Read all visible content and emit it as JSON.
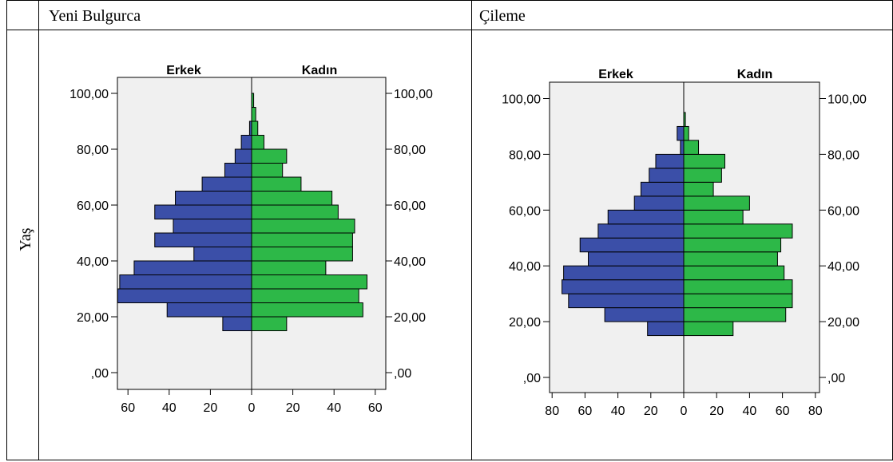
{
  "table": {
    "header_left": "Yeni Bulgurca",
    "header_right": "Çileme",
    "row_label": "Yaş"
  },
  "colors": {
    "male": "#3b4fa8",
    "female": "#2db848",
    "plot_bg": "#f0f0f0"
  },
  "chart_data": [
    {
      "type": "bar",
      "title": "",
      "left_label": "Erkek",
      "right_label": "Kadın",
      "ylabel": "Yaş",
      "ylim": [
        0,
        108
      ],
      "xlim": [
        -70,
        70
      ],
      "yticks": [
        0,
        20,
        40,
        60,
        80,
        100
      ],
      "ytick_labels": [
        ",00",
        "20,00",
        "40,00",
        "60,00",
        "80,00",
        "100,00"
      ],
      "xticks": [
        -60,
        -40,
        -20,
        0,
        20,
        40,
        60
      ],
      "xtick_labels": [
        "60",
        "40",
        "20",
        "0",
        "20",
        "40",
        "60"
      ],
      "bin_width": 5,
      "series": [
        {
          "name": "Erkek",
          "values": [
            {
              "y": 15,
              "v": 14
            },
            {
              "y": 20,
              "v": 41
            },
            {
              "y": 25,
              "v": 65
            },
            {
              "y": 30,
              "v": 64
            },
            {
              "y": 35,
              "v": 57
            },
            {
              "y": 40,
              "v": 28
            },
            {
              "y": 45,
              "v": 47
            },
            {
              "y": 50,
              "v": 38
            },
            {
              "y": 55,
              "v": 47
            },
            {
              "y": 60,
              "v": 37
            },
            {
              "y": 65,
              "v": 24
            },
            {
              "y": 70,
              "v": 13
            },
            {
              "y": 75,
              "v": 8
            },
            {
              "y": 80,
              "v": 5
            },
            {
              "y": 85,
              "v": 1
            }
          ]
        },
        {
          "name": "Kadın",
          "values": [
            {
              "y": 15,
              "v": 17
            },
            {
              "y": 20,
              "v": 54
            },
            {
              "y": 25,
              "v": 52
            },
            {
              "y": 30,
              "v": 56
            },
            {
              "y": 35,
              "v": 36
            },
            {
              "y": 40,
              "v": 49
            },
            {
              "y": 45,
              "v": 49
            },
            {
              "y": 50,
              "v": 50
            },
            {
              "y": 55,
              "v": 42
            },
            {
              "y": 60,
              "v": 39
            },
            {
              "y": 65,
              "v": 24
            },
            {
              "y": 70,
              "v": 15
            },
            {
              "y": 75,
              "v": 17
            },
            {
              "y": 80,
              "v": 6
            },
            {
              "y": 85,
              "v": 3
            },
            {
              "y": 90,
              "v": 2
            },
            {
              "y": 95,
              "v": 1
            }
          ]
        }
      ]
    },
    {
      "type": "bar",
      "title": "",
      "left_label": "Erkek",
      "right_label": "Kadın",
      "ylabel": "Yaş",
      "ylim": [
        0,
        108
      ],
      "xlim": [
        -82,
        82
      ],
      "yticks": [
        0,
        20,
        40,
        60,
        80,
        100
      ],
      "ytick_labels": [
        ",00",
        "20,00",
        "40,00",
        "60,00",
        "80,00",
        "100,00"
      ],
      "xticks": [
        -80,
        -60,
        -40,
        -20,
        0,
        20,
        40,
        60,
        80
      ],
      "xtick_labels": [
        "80",
        "60",
        "40",
        "20",
        "0",
        "20",
        "40",
        "60",
        "80"
      ],
      "bin_width": 5,
      "series": [
        {
          "name": "Erkek",
          "values": [
            {
              "y": 15,
              "v": 22
            },
            {
              "y": 20,
              "v": 48
            },
            {
              "y": 25,
              "v": 70
            },
            {
              "y": 30,
              "v": 74
            },
            {
              "y": 35,
              "v": 73
            },
            {
              "y": 40,
              "v": 58
            },
            {
              "y": 45,
              "v": 63
            },
            {
              "y": 50,
              "v": 52
            },
            {
              "y": 55,
              "v": 46
            },
            {
              "y": 60,
              "v": 30
            },
            {
              "y": 65,
              "v": 26
            },
            {
              "y": 70,
              "v": 21
            },
            {
              "y": 75,
              "v": 17
            },
            {
              "y": 80,
              "v": 2
            },
            {
              "y": 85,
              "v": 4
            }
          ]
        },
        {
          "name": "Kadın",
          "values": [
            {
              "y": 15,
              "v": 30
            },
            {
              "y": 20,
              "v": 62
            },
            {
              "y": 25,
              "v": 66
            },
            {
              "y": 30,
              "v": 66
            },
            {
              "y": 35,
              "v": 61
            },
            {
              "y": 40,
              "v": 57
            },
            {
              "y": 45,
              "v": 59
            },
            {
              "y": 50,
              "v": 66
            },
            {
              "y": 55,
              "v": 36
            },
            {
              "y": 60,
              "v": 40
            },
            {
              "y": 65,
              "v": 18
            },
            {
              "y": 70,
              "v": 23
            },
            {
              "y": 75,
              "v": 25
            },
            {
              "y": 80,
              "v": 9
            },
            {
              "y": 85,
              "v": 3
            },
            {
              "y": 90,
              "v": 1
            }
          ]
        }
      ]
    }
  ]
}
